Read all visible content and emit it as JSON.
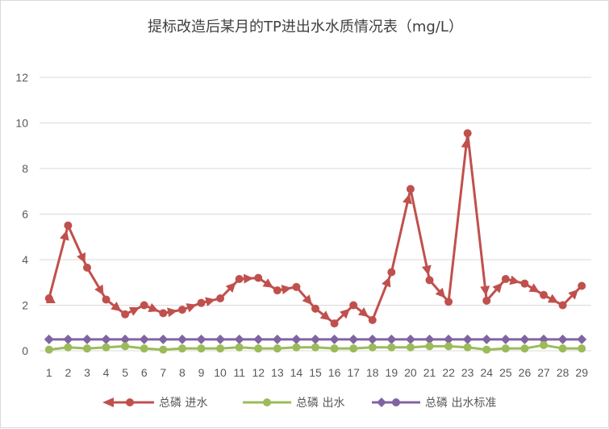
{
  "chart_data": {
    "type": "line",
    "title": "提标改造后某月的TP进出水水质情况表（mg/L）",
    "xlabel": "",
    "ylabel": "",
    "ylim": [
      0,
      12
    ],
    "yticks": [
      0,
      2,
      4,
      6,
      8,
      10,
      12
    ],
    "categories": [
      "1",
      "2",
      "3",
      "4",
      "5",
      "6",
      "7",
      "8",
      "9",
      "10",
      "11",
      "12",
      "13",
      "14",
      "15",
      "16",
      "17",
      "18",
      "19",
      "20",
      "21",
      "22",
      "23",
      "24",
      "25",
      "26",
      "27",
      "28",
      "29"
    ],
    "grid": true,
    "legend_position": "bottom",
    "series": [
      {
        "name": "总磷 进水",
        "color": "#c0504d",
        "marker": "circle",
        "arrows": true,
        "values": [
          2.3,
          5.5,
          3.65,
          2.25,
          1.6,
          2.0,
          1.65,
          1.8,
          2.1,
          2.3,
          3.15,
          3.2,
          2.65,
          2.8,
          1.85,
          1.2,
          2.0,
          1.35,
          3.45,
          7.1,
          3.1,
          2.15,
          9.55,
          2.2,
          3.15,
          2.95,
          2.45,
          2.0,
          2.85
        ]
      },
      {
        "name": "总磷 出水",
        "color": "#9bbb59",
        "marker": "circle",
        "arrows": false,
        "values": [
          0.05,
          0.15,
          0.1,
          0.15,
          0.2,
          0.1,
          0.05,
          0.1,
          0.1,
          0.1,
          0.15,
          0.1,
          0.1,
          0.15,
          0.15,
          0.1,
          0.1,
          0.15,
          0.15,
          0.15,
          0.2,
          0.2,
          0.15,
          0.05,
          0.1,
          0.1,
          0.25,
          0.1,
          0.1
        ]
      },
      {
        "name": "总磷 出水标准",
        "color": "#8064a2",
        "marker": "diamond",
        "arrows": false,
        "values": [
          0.5,
          0.5,
          0.5,
          0.5,
          0.5,
          0.5,
          0.5,
          0.5,
          0.5,
          0.5,
          0.5,
          0.5,
          0.5,
          0.5,
          0.5,
          0.5,
          0.5,
          0.5,
          0.5,
          0.5,
          0.5,
          0.5,
          0.5,
          0.5,
          0.5,
          0.5,
          0.5,
          0.5,
          0.5
        ]
      }
    ]
  }
}
